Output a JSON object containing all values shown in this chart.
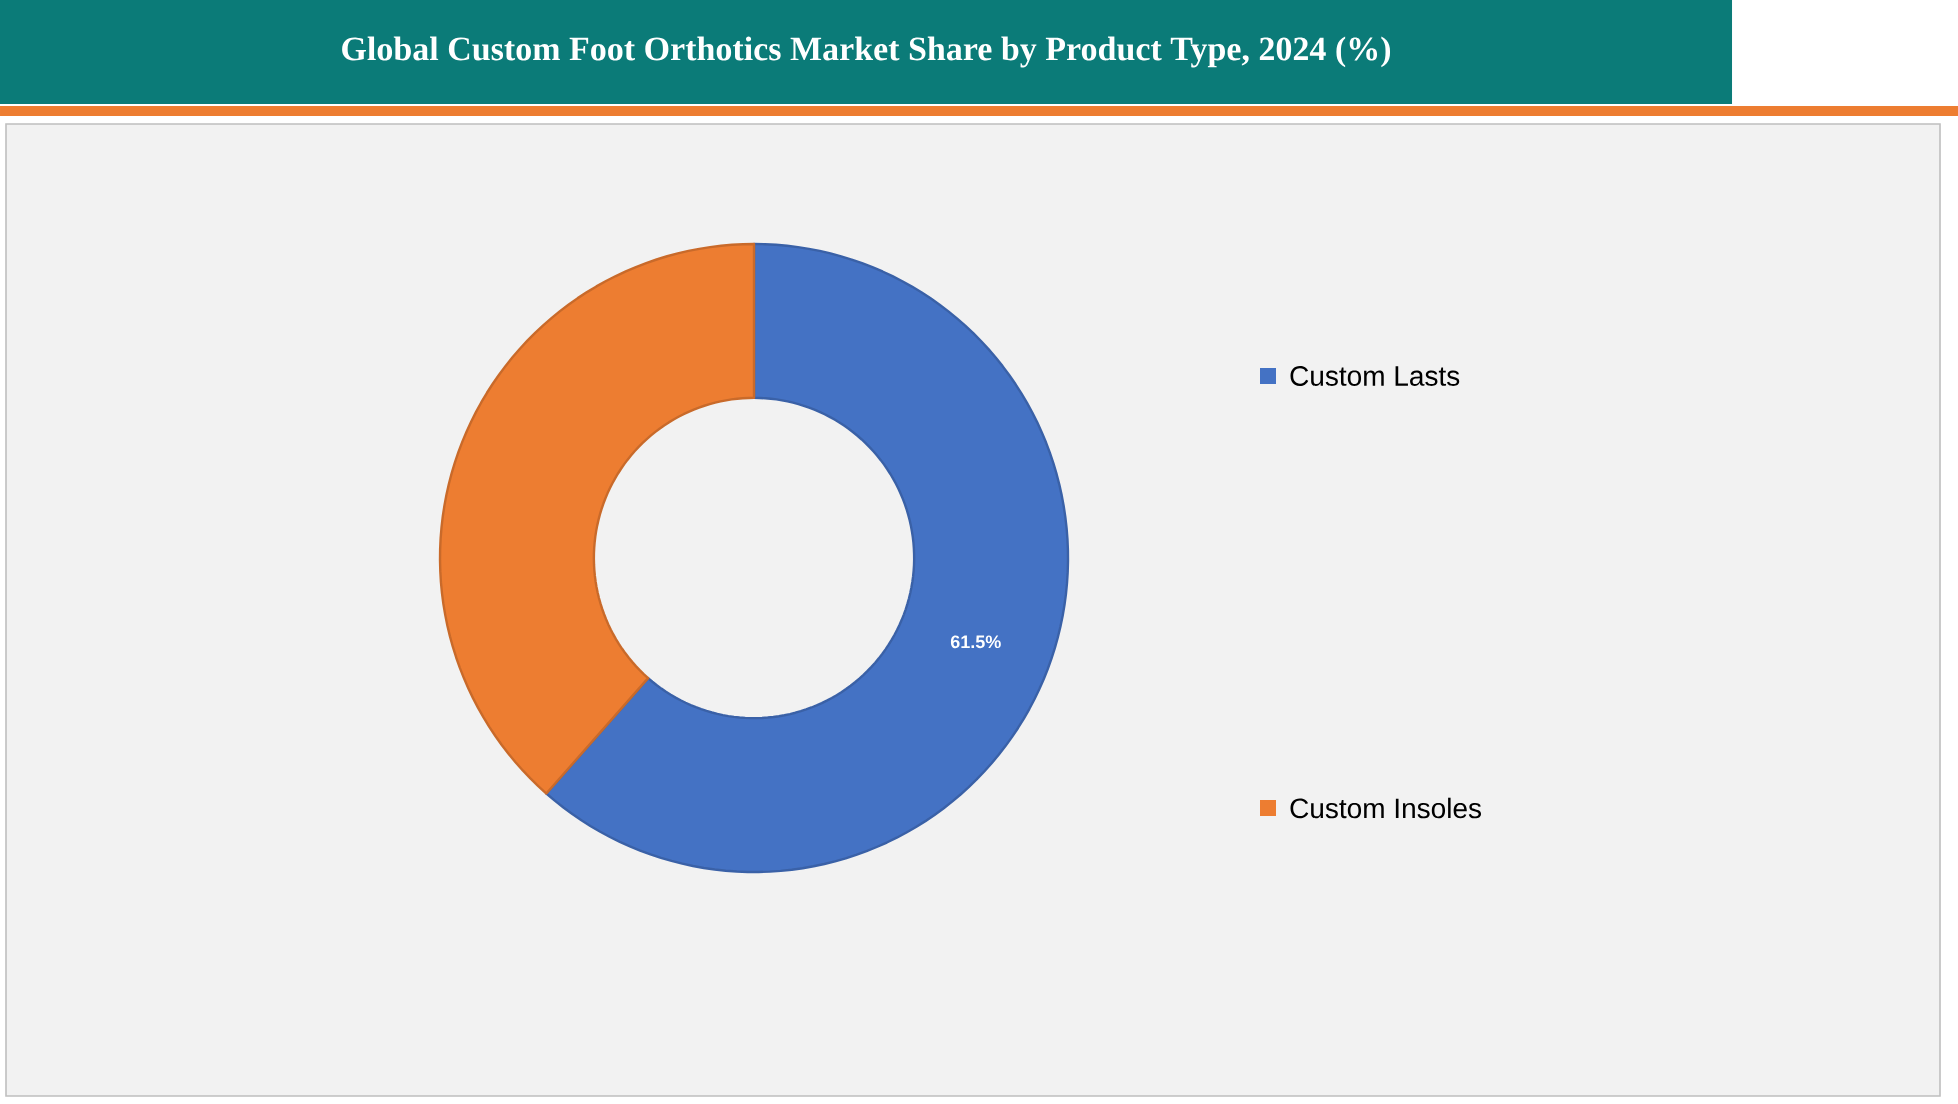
{
  "chart_data": {
    "type": "donut",
    "title": "Global Custom Foot Orthotics Market Share by Product Type, 2024 (%)",
    "categories": [
      "Custom Lasts",
      "Custom Insoles"
    ],
    "values": [
      61.5,
      38.5
    ],
    "colors": [
      "#4472c4",
      "#ed7d31"
    ],
    "value_labels": [
      "61.5%",
      null
    ],
    "legend": "right"
  }
}
